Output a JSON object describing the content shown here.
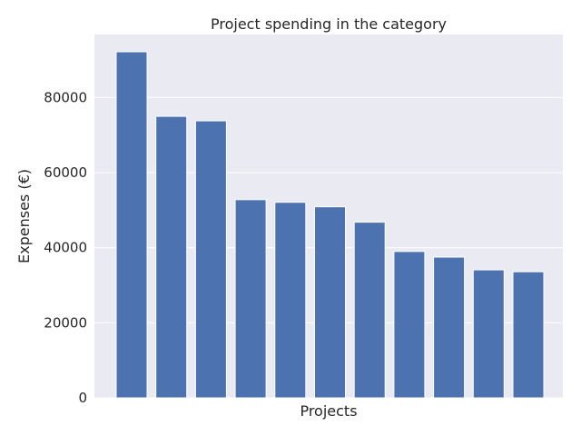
{
  "chart_data": {
    "type": "bar",
    "title": "Project spending in the category",
    "xlabel": "Projects",
    "ylabel": "Expenses (€)",
    "categories": [
      "",
      "",
      "",
      "",
      "",
      "",
      "",
      "",
      "",
      "",
      ""
    ],
    "values": [
      92200,
      75000,
      73800,
      52800,
      52100,
      50900,
      46800,
      39000,
      37500,
      34100,
      33600
    ],
    "ylim": [
      0,
      96800
    ],
    "yticks": [
      0,
      20000,
      40000,
      60000,
      80000
    ],
    "ytick_labels": [
      "0",
      "20000",
      "40000",
      "60000",
      "80000"
    ],
    "grid": true,
    "colors": {
      "bar": "#4c72b0",
      "background": "#eaeaf2",
      "grid": "#ffffff"
    }
  }
}
